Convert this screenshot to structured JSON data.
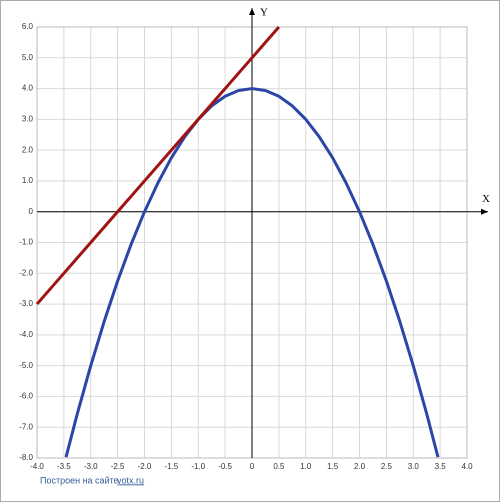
{
  "chart_data": {
    "type": "line",
    "x_label": "X",
    "y_label": "Y",
    "footer": "Построен на сайте",
    "footer_link": "yotx.ru",
    "xlim": [
      -4,
      4
    ],
    "ylim": [
      -8,
      6
    ],
    "xticks": [
      {
        "value": -4,
        "label": "-4.0"
      },
      {
        "value": -3.5,
        "label": "-3.5"
      },
      {
        "value": -3,
        "label": "-3.0"
      },
      {
        "value": -2.5,
        "label": "-2.5"
      },
      {
        "value": -2,
        "label": "-2.0"
      },
      {
        "value": -1.5,
        "label": "-1.5"
      },
      {
        "value": -1,
        "label": "-1.0"
      },
      {
        "value": -0.5,
        "label": "-0.5"
      },
      0,
      0.5,
      {
        "value": 1,
        "label": "1.0"
      },
      1.5,
      {
        "value": 2,
        "label": "2.0"
      },
      2.5,
      {
        "value": 3,
        "label": "3.0"
      },
      3.5,
      {
        "value": 4,
        "label": "4.0"
      }
    ],
    "yticks": [
      {
        "value": 6,
        "label": "6.0"
      },
      {
        "value": 5,
        "label": "5.0"
      },
      {
        "value": 4,
        "label": "4.0"
      },
      {
        "value": 3,
        "label": "3.0"
      },
      {
        "value": 2,
        "label": "2.0"
      },
      {
        "value": 1,
        "label": "1.0"
      },
      0,
      {
        "value": -1,
        "label": "-1.0"
      },
      {
        "value": -2,
        "label": "-2.0"
      },
      {
        "value": -3,
        "label": "-3.0"
      },
      {
        "value": -4,
        "label": "-4.0"
      },
      {
        "value": -5,
        "label": "-5.0"
      },
      {
        "value": -6,
        "label": "-6.0"
      },
      {
        "value": -7,
        "label": "-7.0"
      },
      {
        "value": -8,
        "label": "-8.0"
      }
    ],
    "grid": true,
    "series": [
      {
        "color": "#2b46a6",
        "x": [
          -3.46,
          -3.25,
          -3,
          -2.75,
          -2.5,
          -2.25,
          -2,
          -1.75,
          -1.5,
          -1.25,
          -1,
          -0.75,
          -0.5,
          -0.25,
          0,
          0.25,
          0.5,
          0.75,
          1,
          1.25,
          1.5,
          1.75,
          2,
          2.25,
          2.5,
          2.75,
          3,
          3.25,
          3.46
        ],
        "values": [
          -7.97,
          -6.5625,
          -5,
          -3.5625,
          -2.25,
          -1.0625,
          0,
          0.9375,
          1.75,
          2.4375,
          3,
          3.4375,
          3.75,
          3.9375,
          4,
          3.9375,
          3.75,
          3.4375,
          3,
          2.4375,
          1.75,
          0.9375,
          0,
          -1.0625,
          -2.25,
          -3.5625,
          -5,
          -6.5625,
          -7.97
        ]
      },
      {
        "color": "#a11313",
        "x": [
          -4,
          0.5
        ],
        "values": [
          -3,
          6
        ]
      }
    ]
  }
}
